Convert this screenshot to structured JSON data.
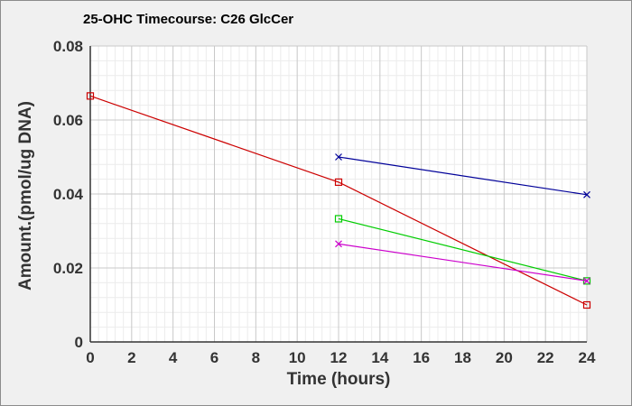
{
  "chart_data": {
    "type": "line",
    "title": "25-OHC Timecourse: C26 GlcCer",
    "xlabel": "Time (hours)",
    "ylabel": "Amount.(pmol/ug DNA)",
    "xlim": [
      0,
      24
    ],
    "ylim": [
      0,
      0.08
    ],
    "x_ticks": [
      0,
      2,
      4,
      6,
      8,
      10,
      12,
      14,
      16,
      18,
      20,
      22,
      24
    ],
    "x_tick_labels": [
      "0",
      "2",
      "4",
      "6",
      "8",
      "10",
      "12",
      "14",
      "16",
      "18",
      "20",
      "22",
      "24"
    ],
    "y_ticks": [
      0,
      0.02,
      0.04,
      0.06,
      0.08
    ],
    "y_tick_labels": [
      "0",
      "0.02",
      "0.04",
      "0.06",
      "0.08"
    ],
    "grid": true,
    "legend": "none",
    "series": [
      {
        "color": "#cc0000",
        "marker": "square",
        "x": [
          0,
          12,
          24
        ],
        "y": [
          0.0665,
          0.0432,
          0.01
        ]
      },
      {
        "color": "#000099",
        "marker": "x",
        "x": [
          12,
          24
        ],
        "y": [
          0.05,
          0.0398
        ]
      },
      {
        "color": "#00cc00",
        "marker": "square",
        "x": [
          12,
          24
        ],
        "y": [
          0.0333,
          0.0165
        ]
      },
      {
        "color": "#cc00cc",
        "marker": "x",
        "x": [
          12,
          24
        ],
        "y": [
          0.0265,
          0.0165
        ]
      }
    ]
  }
}
